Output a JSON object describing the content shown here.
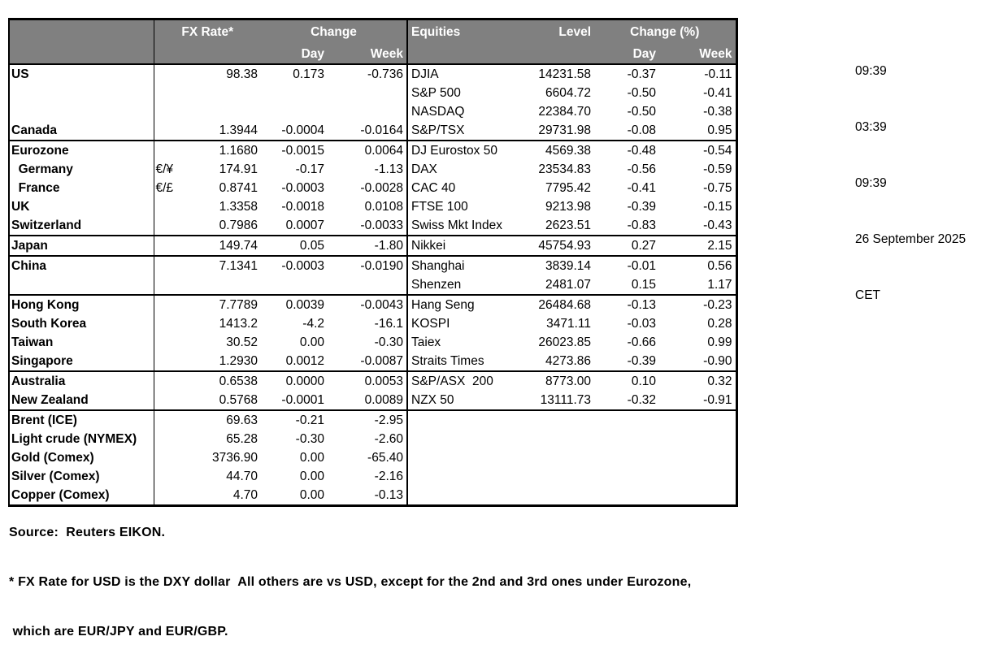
{
  "colors": {
    "header_bg": "#808080",
    "header_text": "#ffffff",
    "border": "#000000",
    "text": "#000000",
    "background": "#ffffff"
  },
  "table": {
    "header": {
      "fx_rate": "FX Rate*",
      "change": "Change",
      "day": "Day",
      "week": "Week",
      "equities": "Equities",
      "level": "Level",
      "change_pct": "Change (%)"
    },
    "rows": [
      {
        "country": "US",
        "symbol": "",
        "fx": "98.38",
        "fx_day": "0.173",
        "fx_week": "-0.736",
        "equity": "DJIA",
        "level": "14231.58",
        "eq_day": "-0.37",
        "eq_week": "-0.11",
        "group_start": false
      },
      {
        "country": "",
        "symbol": "",
        "fx": "",
        "fx_day": "",
        "fx_week": "",
        "equity": "S&P 500",
        "level": "6604.72",
        "eq_day": "-0.50",
        "eq_week": "-0.41",
        "group_start": false
      },
      {
        "country": "",
        "symbol": "",
        "fx": "",
        "fx_day": "",
        "fx_week": "",
        "equity": "NASDAQ",
        "level": "22384.70",
        "eq_day": "-0.50",
        "eq_week": "-0.38",
        "group_start": false
      },
      {
        "country": "Canada",
        "symbol": "",
        "fx": "1.3944",
        "fx_day": "-0.0004",
        "fx_week": "-0.0164",
        "equity": "S&P/TSX",
        "level": "29731.98",
        "eq_day": "-0.08",
        "eq_week": "0.95",
        "group_start": false
      },
      {
        "country": "Eurozone",
        "symbol": "",
        "fx": "1.1680",
        "fx_day": "-0.0015",
        "fx_week": "0.0064",
        "equity": "DJ Eurostox 50",
        "level": "4569.38",
        "eq_day": "-0.48",
        "eq_week": "-0.54",
        "group_start": true
      },
      {
        "country": "  Germany",
        "symbol": "€/¥",
        "fx": "174.91",
        "fx_day": "-0.17",
        "fx_week": "-1.13",
        "equity": "DAX",
        "level": "23534.83",
        "eq_day": "-0.56",
        "eq_week": "-0.59",
        "group_start": false
      },
      {
        "country": "  France",
        "symbol": "€/£",
        "fx": "0.8741",
        "fx_day": "-0.0003",
        "fx_week": "-0.0028",
        "equity": "CAC 40",
        "level": "7795.42",
        "eq_day": "-0.41",
        "eq_week": "-0.75",
        "group_start": false
      },
      {
        "country": "UK",
        "symbol": "",
        "fx": "1.3358",
        "fx_day": "-0.0018",
        "fx_week": "0.0108",
        "equity": "FTSE 100",
        "level": "9213.98",
        "eq_day": "-0.39",
        "eq_week": "-0.15",
        "group_start": false
      },
      {
        "country": "Switzerland",
        "symbol": "",
        "fx": "0.7986",
        "fx_day": "0.0007",
        "fx_week": "-0.0033",
        "equity": "Swiss Mkt Index",
        "level": "2623.51",
        "eq_day": "-0.83",
        "eq_week": "-0.43",
        "group_start": false
      },
      {
        "country": "Japan",
        "symbol": "",
        "fx": "149.74",
        "fx_day": "0.05",
        "fx_week": "-1.80",
        "equity": "Nikkei",
        "level": "45754.93",
        "eq_day": "0.27",
        "eq_week": "2.15",
        "group_start": true
      },
      {
        "country": "China",
        "symbol": "",
        "fx": "7.1341",
        "fx_day": "-0.0003",
        "fx_week": "-0.0190",
        "equity": "Shanghai",
        "level": "3839.14",
        "eq_day": "-0.01",
        "eq_week": "0.56",
        "group_start": true
      },
      {
        "country": "",
        "symbol": "",
        "fx": "",
        "fx_day": "",
        "fx_week": "",
        "equity": "Shenzen",
        "level": "2481.07",
        "eq_day": "0.15",
        "eq_week": "1.17",
        "group_start": false
      },
      {
        "country": "Hong Kong",
        "symbol": "",
        "fx": "7.7789",
        "fx_day": "0.0039",
        "fx_week": "-0.0043",
        "equity": "Hang Seng",
        "level": "26484.68",
        "eq_day": "-0.13",
        "eq_week": "-0.23",
        "group_start": true
      },
      {
        "country": "South Korea",
        "symbol": "",
        "fx": "1413.2",
        "fx_day": "-4.2",
        "fx_week": "-16.1",
        "equity": "KOSPI",
        "level": "3471.11",
        "eq_day": "-0.03",
        "eq_week": "0.28",
        "group_start": false
      },
      {
        "country": "Taiwan",
        "symbol": "",
        "fx": "30.52",
        "fx_day": "0.00",
        "fx_week": "-0.30",
        "equity": "Taiex",
        "level": "26023.85",
        "eq_day": "-0.66",
        "eq_week": "0.99",
        "group_start": false
      },
      {
        "country": "Singapore",
        "symbol": "",
        "fx": "1.2930",
        "fx_day": "0.0012",
        "fx_week": "-0.0087",
        "equity": "Straits Times",
        "level": "4273.86",
        "eq_day": "-0.39",
        "eq_week": "-0.90",
        "group_start": false
      },
      {
        "country": "Australia",
        "symbol": "",
        "fx": "0.6538",
        "fx_day": "0.0000",
        "fx_week": "0.0053",
        "equity": "S&P/ASX  200",
        "level": "8773.00",
        "eq_day": "0.10",
        "eq_week": "0.32",
        "group_start": true
      },
      {
        "country": "New Zealand",
        "symbol": "",
        "fx": "0.5768",
        "fx_day": "-0.0001",
        "fx_week": "0.0089",
        "equity": "NZX 50",
        "level": "13111.73",
        "eq_day": "-0.32",
        "eq_week": "-0.91",
        "group_start": false
      },
      {
        "country": "Brent (ICE)",
        "symbol": "",
        "fx": "69.63",
        "fx_day": "-0.21",
        "fx_week": "-2.95",
        "equity": "",
        "level": "",
        "eq_day": "",
        "eq_week": "",
        "group_start": true
      },
      {
        "country": "Light crude (NYMEX)",
        "symbol": "",
        "fx": "65.28",
        "fx_day": "-0.30",
        "fx_week": "-2.60",
        "equity": "",
        "level": "",
        "eq_day": "",
        "eq_week": "",
        "group_start": false
      },
      {
        "country": "Gold (Comex)",
        "symbol": "",
        "fx": "3736.90",
        "fx_day": "0.00",
        "fx_week": "-65.40",
        "equity": "",
        "level": "",
        "eq_day": "",
        "eq_week": "",
        "group_start": false
      },
      {
        "country": "Silver (Comex)",
        "symbol": "",
        "fx": "44.70",
        "fx_day": "0.00",
        "fx_week": "-2.16",
        "equity": "",
        "level": "",
        "eq_day": "",
        "eq_week": "",
        "group_start": false
      },
      {
        "country": "Copper (Comex)",
        "symbol": "",
        "fx": "4.70",
        "fx_day": "0.00",
        "fx_week": "-0.13",
        "equity": "",
        "level": "",
        "eq_day": "",
        "eq_week": "",
        "group_start": false
      }
    ]
  },
  "timestamps": {
    "lines": [
      "09:39",
      "03:39",
      "09:39",
      "26 September 2025",
      "CET"
    ]
  },
  "footer": {
    "source": "Source:  Reuters EIKON.",
    "note1": "* FX Rate for USD is the DXY dollar  All others are vs USD, except for the 2nd and 3rd ones under Eurozone,",
    "note2": " which are EUR/JPY and EUR/GBP."
  }
}
